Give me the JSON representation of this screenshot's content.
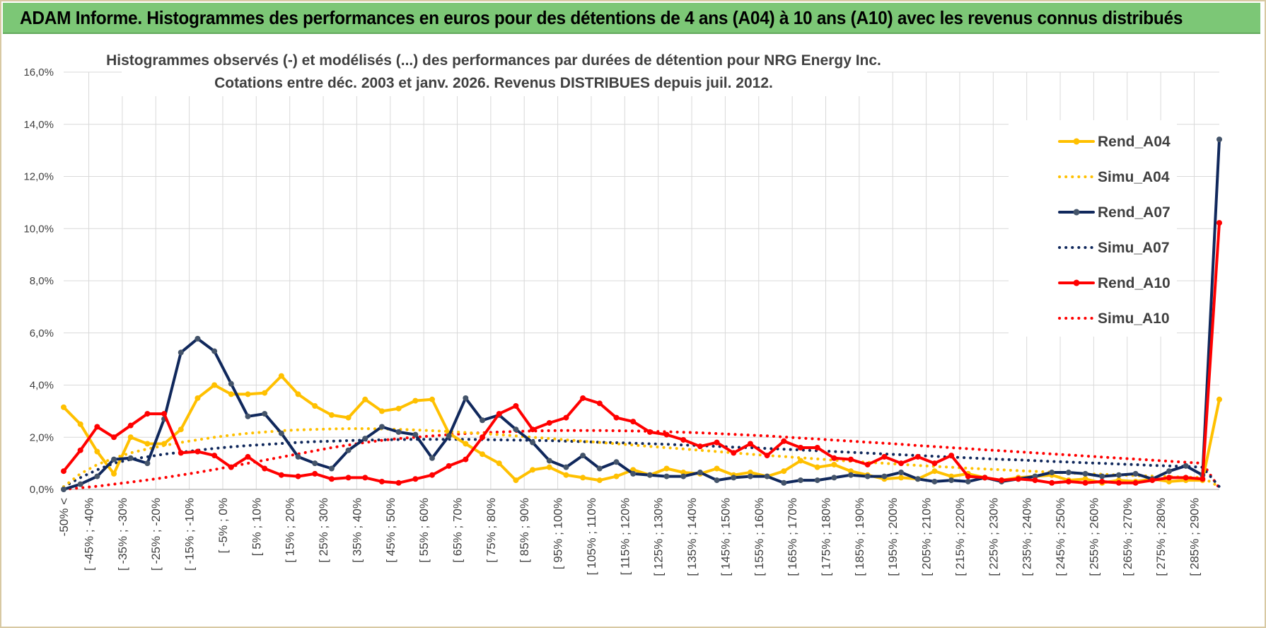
{
  "banner": {
    "title": "ADAM Informe. Histogrammes des performances en euros pour des détentions de 4 ans (A04) à 10 ans (A10) avec les revenus connus distribués"
  },
  "colors": {
    "A04": "#ffc000",
    "A07": "#10285c",
    "A10": "#ff0000",
    "banner": "#7cc776",
    "grid": "#d9d9d9"
  },
  "chart_data": {
    "type": "line",
    "title_line1": "Histogrammes observés (-) et modélisés (...) des performances par durées de détention pour NRG Energy Inc.",
    "title_line2": "Cotations entre déc. 2003 et janv. 2026. Revenus DISTRIBUES depuis juil. 2012.",
    "ylabel": "",
    "xlabel": "",
    "ylim": [
      0,
      16
    ],
    "yticks": [
      "0,0%",
      "2,0%",
      "4,0%",
      "6,0%",
      "8,0%",
      "10,0%",
      "12,0%",
      "14,0%",
      "16,0%"
    ],
    "x_tick_labels": [
      "-50% <",
      "[ -45% ; -40%",
      "[ -35% ; -30%",
      "[ -25% ; -20%",
      "[ -15% ; -10%",
      "[ -5% ; 0%",
      "[ 5% ; 10%",
      "[ 15% ; 20%",
      "[ 25% ; 30%",
      "[ 35% ; 40%",
      "[ 45% ; 50%",
      "[ 55% ; 60%",
      "[ 65% ; 70%",
      "[ 75% ; 80%",
      "[ 85% ; 90%",
      "[ 95% ; 100%",
      "[ 105% ; 110%",
      "[ 115% ; 120%",
      "[ 125% ; 130%",
      "[ 135% ; 140%",
      "[ 145% ; 150%",
      "[ 155% ; 160%",
      "[ 165% ; 170%",
      "[ 175% ; 180%",
      "[ 185% ; 190%",
      "[ 195% ; 200%",
      "[ 205% ; 210%",
      "[ 215% ; 220%",
      "[ 225% ; 230%",
      "[ 235% ; 240%",
      "[ 245% ; 250%",
      "[ 255% ; 260%",
      "[ 265% ; 270%",
      "[ 275% ; 280%",
      "[ 285% ; 290%"
    ],
    "n_points": 70,
    "series": [
      {
        "name": "Rend_A04",
        "style": "solid",
        "color": "#ffc000",
        "values": [
          3.15,
          2.5,
          1.45,
          0.6,
          2.0,
          1.75,
          1.75,
          2.3,
          3.5,
          4.0,
          3.65,
          3.65,
          3.7,
          4.35,
          3.65,
          3.2,
          2.85,
          2.75,
          3.45,
          3.0,
          3.1,
          3.4,
          3.45,
          2.15,
          1.75,
          1.35,
          1.0,
          0.35,
          0.75,
          0.85,
          0.55,
          0.45,
          0.35,
          0.5,
          0.75,
          0.55,
          0.8,
          0.65,
          0.6,
          0.8,
          0.55,
          0.65,
          0.5,
          0.7,
          1.1,
          0.85,
          0.95,
          0.7,
          0.55,
          0.4,
          0.45,
          0.4,
          0.7,
          0.5,
          0.6,
          0.45,
          0.35,
          0.45,
          0.5,
          0.55,
          0.35,
          0.4,
          0.25,
          0.35,
          0.3,
          0.4,
          0.3,
          0.35,
          0.35,
          3.45
        ]
      },
      {
        "name": "Simu_A04",
        "style": "dotted",
        "color": "#ffc000",
        "values": [
          0.1,
          0.6,
          0.95,
          1.2,
          1.4,
          1.55,
          1.68,
          1.8,
          1.9,
          2.0,
          2.08,
          2.15,
          2.2,
          2.25,
          2.28,
          2.3,
          2.32,
          2.33,
          2.33,
          2.32,
          2.3,
          2.28,
          2.25,
          2.22,
          2.18,
          2.14,
          2.1,
          2.05,
          2.0,
          1.95,
          1.9,
          1.85,
          1.8,
          1.75,
          1.7,
          1.65,
          1.6,
          1.55,
          1.5,
          1.45,
          1.4,
          1.35,
          1.3,
          1.26,
          1.21,
          1.17,
          1.12,
          1.08,
          1.04,
          1.0,
          0.96,
          0.92,
          0.88,
          0.85,
          0.81,
          0.78,
          0.75,
          0.72,
          0.69,
          0.66,
          0.63,
          0.6,
          0.58,
          0.55,
          0.53,
          0.51,
          0.49,
          0.47,
          0.45,
          0.1
        ]
      },
      {
        "name": "Rend_A07",
        "style": "solid",
        "color": "#10285c",
        "values": [
          0.0,
          0.2,
          0.5,
          1.15,
          1.2,
          1.0,
          2.7,
          5.25,
          5.78,
          5.3,
          4.05,
          2.8,
          2.9,
          2.15,
          1.25,
          1.0,
          0.8,
          1.5,
          1.95,
          2.4,
          2.2,
          2.1,
          1.2,
          2.05,
          3.5,
          2.65,
          2.85,
          2.3,
          1.8,
          1.1,
          0.85,
          1.3,
          0.8,
          1.05,
          0.6,
          0.55,
          0.5,
          0.5,
          0.65,
          0.35,
          0.45,
          0.5,
          0.5,
          0.25,
          0.35,
          0.35,
          0.45,
          0.55,
          0.5,
          0.5,
          0.65,
          0.4,
          0.3,
          0.35,
          0.3,
          0.45,
          0.3,
          0.4,
          0.5,
          0.65,
          0.65,
          0.6,
          0.5,
          0.55,
          0.6,
          0.4,
          0.7,
          0.9,
          0.55,
          13.42
        ]
      },
      {
        "name": "Simu_A07",
        "style": "dotted",
        "color": "#10285c",
        "values": [
          0.1,
          0.45,
          0.75,
          1.0,
          1.15,
          1.25,
          1.35,
          1.42,
          1.5,
          1.57,
          1.63,
          1.68,
          1.72,
          1.76,
          1.8,
          1.83,
          1.85,
          1.87,
          1.89,
          1.9,
          1.91,
          1.92,
          1.92,
          1.92,
          1.92,
          1.91,
          1.9,
          1.89,
          1.88,
          1.87,
          1.85,
          1.83,
          1.81,
          1.79,
          1.77,
          1.75,
          1.73,
          1.7,
          1.68,
          1.65,
          1.62,
          1.6,
          1.57,
          1.54,
          1.51,
          1.48,
          1.45,
          1.42,
          1.39,
          1.36,
          1.33,
          1.3,
          1.27,
          1.24,
          1.21,
          1.18,
          1.15,
          1.13,
          1.1,
          1.07,
          1.05,
          1.02,
          1.0,
          0.97,
          0.95,
          0.92,
          0.9,
          0.88,
          0.85,
          0.1
        ]
      },
      {
        "name": "Rend_A10",
        "style": "solid",
        "color": "#ff0000",
        "values": [
          0.7,
          1.5,
          2.4,
          2.0,
          2.45,
          2.9,
          2.9,
          1.4,
          1.45,
          1.3,
          0.85,
          1.25,
          0.8,
          0.55,
          0.5,
          0.6,
          0.4,
          0.45,
          0.45,
          0.3,
          0.25,
          0.4,
          0.55,
          0.9,
          1.15,
          2.0,
          2.9,
          3.2,
          2.3,
          2.55,
          2.75,
          3.5,
          3.3,
          2.75,
          2.6,
          2.2,
          2.1,
          1.9,
          1.65,
          1.8,
          1.4,
          1.75,
          1.3,
          1.85,
          1.6,
          1.6,
          1.2,
          1.15,
          0.95,
          1.25,
          1.0,
          1.25,
          1.0,
          1.3,
          0.5,
          0.45,
          0.35,
          0.4,
          0.35,
          0.25,
          0.3,
          0.25,
          0.3,
          0.25,
          0.25,
          0.35,
          0.45,
          0.45,
          0.4,
          10.22
        ]
      },
      {
        "name": "Simu_A10",
        "style": "dotted",
        "color": "#ff0000",
        "values": [
          0.0,
          0.06,
          0.12,
          0.2,
          0.28,
          0.36,
          0.45,
          0.55,
          0.65,
          0.76,
          0.88,
          1.0,
          1.12,
          1.24,
          1.36,
          1.48,
          1.6,
          1.7,
          1.8,
          1.88,
          1.95,
          2.0,
          2.05,
          2.1,
          2.14,
          2.17,
          2.2,
          2.22,
          2.24,
          2.25,
          2.26,
          2.26,
          2.26,
          2.25,
          2.24,
          2.23,
          2.21,
          2.19,
          2.17,
          2.14,
          2.11,
          2.08,
          2.05,
          2.01,
          1.97,
          1.93,
          1.89,
          1.85,
          1.81,
          1.77,
          1.73,
          1.68,
          1.64,
          1.6,
          1.56,
          1.52,
          1.48,
          1.44,
          1.4,
          1.36,
          1.32,
          1.28,
          1.24,
          1.2,
          1.16,
          1.12,
          1.08,
          1.04,
          1.0,
          0.05
        ]
      }
    ],
    "legend": [
      "Rend_A04",
      "Simu_A04",
      "Rend_A07",
      "Simu_A07",
      "Rend_A10",
      "Simu_A10"
    ],
    "legend_position": "right"
  }
}
